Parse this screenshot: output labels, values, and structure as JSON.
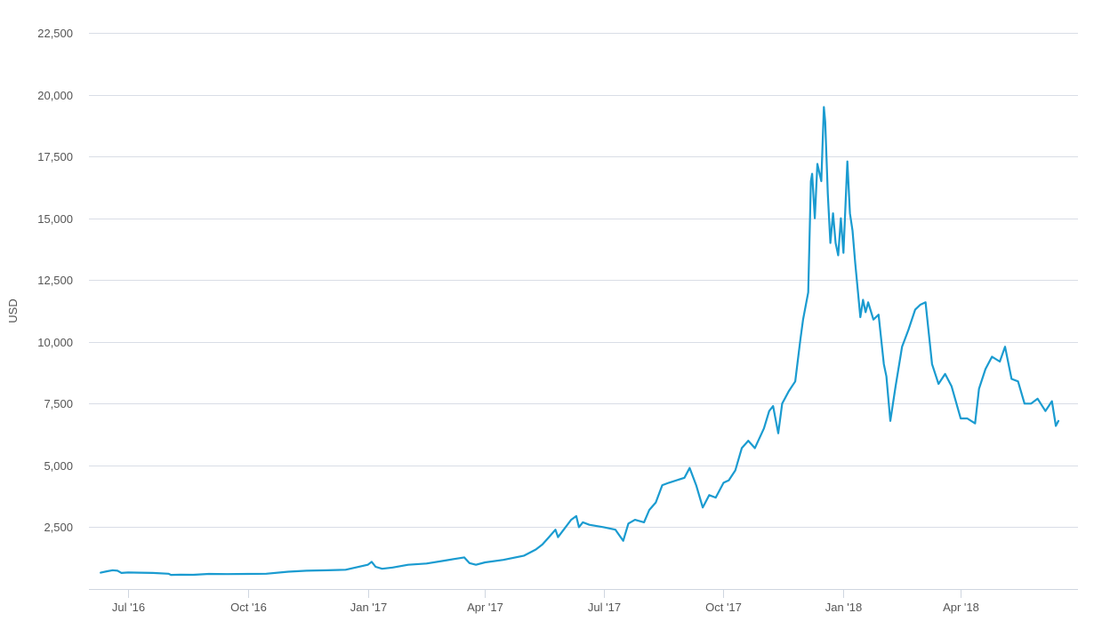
{
  "chart_data": {
    "type": "line",
    "title": "",
    "xlabel": "",
    "ylabel": "USD",
    "ylim": [
      0,
      22500
    ],
    "xlim": [
      "2016-06-01",
      "2018-06-30"
    ],
    "y_ticks": [
      2500,
      5000,
      7500,
      10000,
      12500,
      15000,
      17500,
      20000,
      22500
    ],
    "y_tick_labels": [
      "2,500",
      "5,000",
      "7,500",
      "10,000",
      "12,500",
      "15,000",
      "17,500",
      "20,000",
      "22,500"
    ],
    "x_ticks": [
      "2016-07-01",
      "2016-10-01",
      "2017-01-01",
      "2017-04-01",
      "2017-07-01",
      "2017-10-01",
      "2018-01-01",
      "2018-04-01"
    ],
    "x_tick_labels": [
      "Jul '16",
      "Oct '16",
      "Jan '17",
      "Apr '17",
      "Jul '17",
      "Oct '17",
      "Jan '18",
      "Apr '18"
    ],
    "grid": true,
    "legend": "none",
    "colors": {
      "line": "#1a9bd0",
      "grid": "#d9dde6",
      "text": "#555555"
    },
    "series": [
      {
        "x": [
          "2016-06-10",
          "2016-06-15",
          "2016-06-19",
          "2016-06-23",
          "2016-06-26",
          "2016-07-01",
          "2016-07-10",
          "2016-07-20",
          "2016-08-01",
          "2016-08-03",
          "2016-08-10",
          "2016-08-20",
          "2016-09-01",
          "2016-09-15",
          "2016-10-01",
          "2016-10-15",
          "2016-11-01",
          "2016-11-15",
          "2016-12-01",
          "2016-12-15",
          "2017-01-01",
          "2017-01-04",
          "2017-01-07",
          "2017-01-12",
          "2017-01-20",
          "2017-02-01",
          "2017-02-15",
          "2017-03-01",
          "2017-03-10",
          "2017-03-16",
          "2017-03-20",
          "2017-03-25",
          "2017-04-01",
          "2017-04-15",
          "2017-05-01",
          "2017-05-10",
          "2017-05-15",
          "2017-05-20",
          "2017-05-25",
          "2017-05-27",
          "2017-06-01",
          "2017-06-06",
          "2017-06-10",
          "2017-06-12",
          "2017-06-15",
          "2017-06-20",
          "2017-07-01",
          "2017-07-10",
          "2017-07-16",
          "2017-07-20",
          "2017-07-25",
          "2017-08-01",
          "2017-08-05",
          "2017-08-10",
          "2017-08-15",
          "2017-08-20",
          "2017-09-01",
          "2017-09-05",
          "2017-09-10",
          "2017-09-15",
          "2017-09-20",
          "2017-09-25",
          "2017-10-01",
          "2017-10-05",
          "2017-10-10",
          "2017-10-15",
          "2017-10-20",
          "2017-10-25",
          "2017-11-01",
          "2017-11-05",
          "2017-11-08",
          "2017-11-12",
          "2017-11-15",
          "2017-11-20",
          "2017-11-25",
          "2017-11-29",
          "2017-12-01",
          "2017-12-05",
          "2017-12-07",
          "2017-12-08",
          "2017-12-10",
          "2017-12-12",
          "2017-12-15",
          "2017-12-17",
          "2017-12-18",
          "2017-12-20",
          "2017-12-22",
          "2017-12-24",
          "2017-12-26",
          "2017-12-28",
          "2017-12-30",
          "2018-01-01",
          "2018-01-04",
          "2018-01-06",
          "2018-01-08",
          "2018-01-10",
          "2018-01-14",
          "2018-01-16",
          "2018-01-18",
          "2018-01-20",
          "2018-01-24",
          "2018-01-28",
          "2018-02-01",
          "2018-02-03",
          "2018-02-06",
          "2018-02-10",
          "2018-02-15",
          "2018-02-20",
          "2018-02-25",
          "2018-03-01",
          "2018-03-05",
          "2018-03-10",
          "2018-03-15",
          "2018-03-20",
          "2018-03-25",
          "2018-04-01",
          "2018-04-06",
          "2018-04-12",
          "2018-04-15",
          "2018-04-20",
          "2018-04-25",
          "2018-05-01",
          "2018-05-05",
          "2018-05-10",
          "2018-05-15",
          "2018-05-20",
          "2018-05-25",
          "2018-05-30",
          "2018-06-05",
          "2018-06-10",
          "2018-06-13",
          "2018-06-15"
        ],
        "y": [
          660,
          720,
          760,
          740,
          650,
          670,
          660,
          650,
          620,
          570,
          580,
          575,
          610,
          605,
          610,
          620,
          700,
          740,
          760,
          780,
          980,
          1100,
          900,
          820,
          870,
          980,
          1030,
          1150,
          1230,
          1280,
          1050,
          980,
          1080,
          1180,
          1350,
          1600,
          1800,
          2100,
          2400,
          2100,
          2450,
          2800,
          2950,
          2500,
          2700,
          2600,
          2500,
          2400,
          1950,
          2650,
          2800,
          2700,
          3200,
          3500,
          4200,
          4300,
          4500,
          4900,
          4200,
          3300,
          3800,
          3700,
          4300,
          4400,
          4800,
          5700,
          6000,
          5700,
          6500,
          7200,
          7400,
          6300,
          7500,
          8000,
          8400,
          10100,
          10900,
          12000,
          16500,
          16800,
          15000,
          17200,
          16500,
          19500,
          18900,
          16000,
          14000,
          15200,
          14000,
          13500,
          15000,
          13600,
          17300,
          15200,
          14500,
          13200,
          11000,
          11700,
          11200,
          11600,
          10900,
          11100,
          9100,
          8600,
          6800,
          8200,
          9800,
          10500,
          11300,
          11500,
          11600,
          9100,
          8300,
          8700,
          8200,
          6900,
          6900,
          6700,
          8100,
          8900,
          9400,
          9200,
          9800,
          8500,
          8400,
          7500,
          7500,
          7700,
          7200,
          7600,
          6600,
          6800
        ]
      }
    ]
  }
}
